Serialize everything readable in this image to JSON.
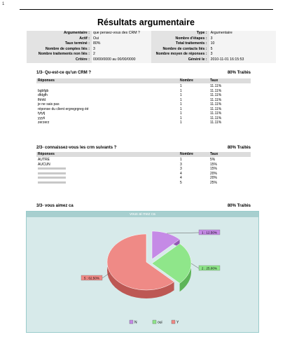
{
  "corner": "1",
  "title": "Résultats argumentaire",
  "meta_left": [
    {
      "k": "Argumentaire :",
      "v": "que pensez-vous des CRM ?"
    },
    {
      "k": "Actif :",
      "v": "Oui"
    },
    {
      "k": "Taux terminé :",
      "v": "80%"
    },
    {
      "k": "Nombre de comptes liés :",
      "v": "3"
    },
    {
      "k": "Nombre traitements non liés :",
      "v": "2"
    },
    {
      "k": "Critère :",
      "v": "00/00/0000 au 00/00/0000"
    }
  ],
  "meta_right": [
    {
      "k": "Type :",
      "v": "Argumentaire"
    },
    {
      "k": "Nombre d'étapes :",
      "v": "3"
    },
    {
      "k": "Total traitements :",
      "v": "10"
    },
    {
      "k": "Nombre de contacts liés :",
      "v": "5"
    },
    {
      "k": "Nombre moyen de réponses :",
      "v": "3"
    },
    {
      "k": "Généré le :",
      "v": "2010-11-01 16:15:53"
    }
  ],
  "col_headers": {
    "reponses": "Réponses",
    "nombre": "Nombre",
    "taux": "Taux"
  },
  "q1": {
    "title": "1/3- Qu-est-ce qu'un CRM ?",
    "traites": "80% Traités",
    "rows": [
      {
        "r": "",
        "n": "1",
        "t": "11.11%"
      },
      {
        "r": "bgbfgb",
        "n": "1",
        "t": "11.11%"
      },
      {
        "r": "dfdgfh",
        "n": "1",
        "t": "11.11%"
      },
      {
        "r": "fhhfd",
        "n": "1",
        "t": "11.11%"
      },
      {
        "r": "je ne sais pas",
        "n": "1",
        "t": "11.11%"
      },
      {
        "r": "réponse du client ergregrgreg éé",
        "n": "1",
        "t": "11.11%"
      },
      {
        "r": "tytytj",
        "n": "1",
        "t": "11.11%"
      },
      {
        "r": "yyyti",
        "n": "1",
        "t": "11.11%"
      },
      {
        "r": "zerzerz",
        "n": "1",
        "t": "11.11%"
      }
    ]
  },
  "q2": {
    "title": "2/3- connaissez-vous les crm suivants ?",
    "traites": "80% Traités",
    "rows": [
      {
        "r": "AUTRE",
        "n": "1",
        "t": "5%"
      },
      {
        "r": "AUCUN",
        "n": "3",
        "t": "15%"
      },
      {
        "r": "",
        "n": "3",
        "t": "15%"
      },
      {
        "r": "",
        "n": "4",
        "t": "20%"
      },
      {
        "r": "",
        "n": "4",
        "t": "20%"
      },
      {
        "r": "",
        "n": "5",
        "t": "25%"
      }
    ]
  },
  "q3": {
    "title": "3/3- vous aimez ca",
    "traites": "80% Traités",
    "chart_title": "vous ai mez ca"
  },
  "chart_data": {
    "type": "pie",
    "title": "vous ai mez ca",
    "categories": [
      "N",
      "oui",
      "Y"
    ],
    "values": [
      12.5,
      25.0,
      62.5
    ],
    "labels": [
      "1 : 12.50%",
      "2 : 25.00%",
      "5 : 62.50%"
    ],
    "colors": [
      "#c58ae6",
      "#8fe68a",
      "#ef8a86"
    ],
    "legend_placement": "bottom"
  }
}
